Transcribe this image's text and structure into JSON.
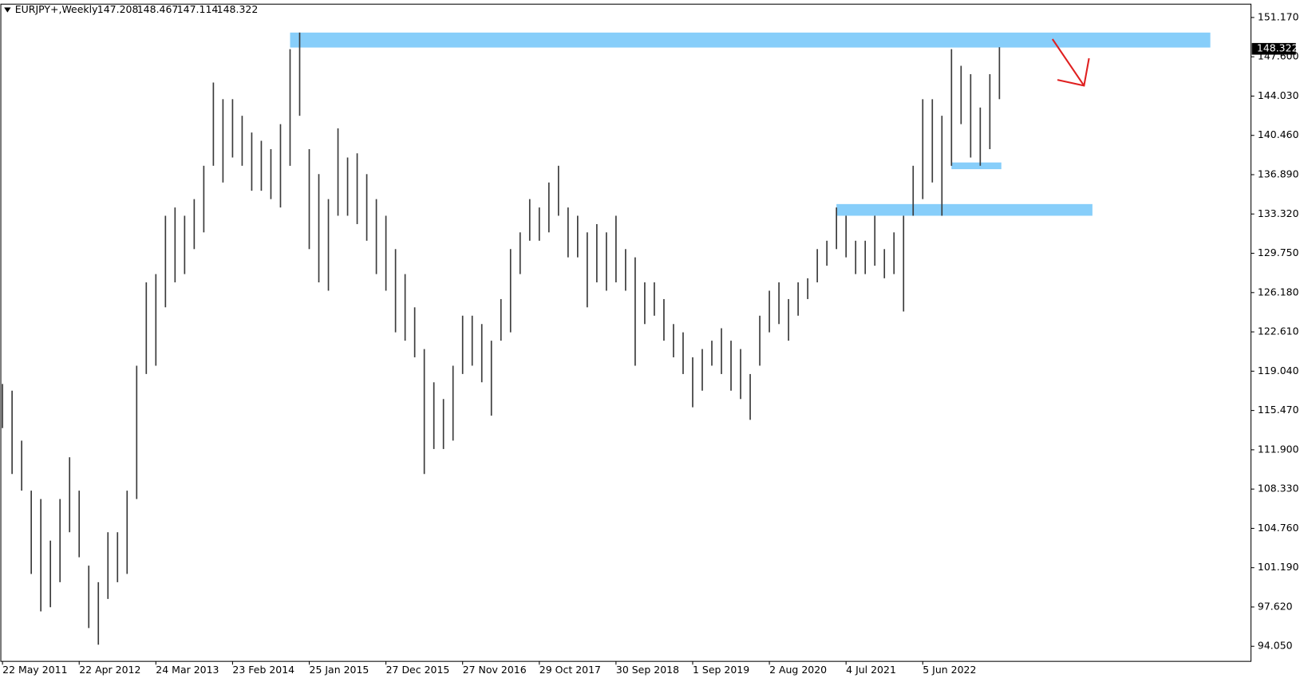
{
  "chart_data": {
    "type": "ohlc",
    "title": "EURJPY+,Weekly",
    "header_values": [
      147.208,
      148.467,
      147.114,
      148.322
    ],
    "last_price": 148.322,
    "color": "#3a3a3a",
    "zone_color": "#87cefa",
    "categories": [
      "22 May 2011",
      null,
      null,
      null,
      null,
      null,
      null,
      null,
      "22 Apr 2012",
      null,
      null,
      null,
      null,
      null,
      null,
      null,
      "24 Mar 2013",
      null,
      null,
      null,
      null,
      null,
      null,
      null,
      "23 Feb 2014",
      null,
      null,
      null,
      null,
      null,
      null,
      null,
      "25 Jan 2015",
      null,
      null,
      null,
      null,
      null,
      null,
      null,
      "27 Dec 2015",
      null,
      null,
      null,
      null,
      null,
      null,
      null,
      "27 Nov 2016",
      null,
      null,
      null,
      null,
      null,
      null,
      null,
      "29 Oct 2017",
      null,
      null,
      null,
      null,
      null,
      null,
      null,
      "30 Sep 2018",
      null,
      null,
      null,
      null,
      null,
      null,
      null,
      "1 Sep 2019",
      null,
      null,
      null,
      null,
      null,
      null,
      null,
      "2 Aug 2020",
      null,
      null,
      null,
      null,
      null,
      null,
      null,
      "4 Jul 2021",
      null,
      null,
      null,
      null,
      null,
      null,
      null,
      "5 Jun 2022",
      null,
      null,
      null,
      null,
      null,
      null,
      null,
      null
    ],
    "high": [
      117.88,
      117.27,
      112.73,
      108.19,
      107.43,
      103.65,
      107.43,
      111.22,
      108.19,
      101.38,
      99.87,
      104.41,
      104.41,
      108.19,
      119.54,
      127.11,
      127.86,
      133.16,
      133.91,
      133.16,
      134.67,
      137.7,
      145.26,
      143.75,
      143.75,
      142.24,
      140.72,
      139.97,
      139.21,
      141.48,
      148.29,
      149.8,
      139.21,
      136.94,
      134.67,
      141.1,
      138.45,
      138.83,
      136.94,
      134.67,
      133.16,
      130.13,
      127.86,
      124.84,
      121.05,
      118.03,
      116.51,
      119.54,
      124.08,
      124.08,
      123.32,
      121.81,
      125.59,
      130.13,
      131.65,
      134.67,
      133.91,
      136.18,
      137.7,
      133.91,
      133.16,
      131.65,
      132.4,
      131.65,
      133.16,
      130.13,
      129.38,
      127.11,
      127.11,
      125.59,
      123.32,
      122.57,
      120.3,
      121.05,
      121.81,
      122.94,
      121.81,
      121.05,
      118.78,
      124.08,
      126.35,
      127.11,
      125.59,
      127.11,
      127.48,
      130.13,
      130.89,
      133.91,
      133.16,
      130.89,
      130.89,
      133.16,
      130.13,
      131.65,
      133.16,
      137.7,
      143.75,
      143.75,
      142.24,
      148.29,
      146.78,
      146.02,
      142.99,
      146.02,
      148.467
    ],
    "low": [
      113.87,
      109.7,
      108.19,
      100.62,
      97.22,
      97.6,
      99.87,
      104.41,
      102.14,
      95.71,
      94.19,
      98.35,
      99.87,
      100.62,
      107.43,
      118.78,
      119.54,
      124.84,
      127.11,
      127.86,
      130.13,
      131.65,
      137.7,
      136.18,
      138.45,
      137.7,
      135.43,
      135.43,
      134.67,
      133.91,
      137.7,
      142.24,
      130.13,
      127.11,
      126.35,
      133.16,
      133.16,
      132.4,
      130.89,
      127.86,
      126.35,
      122.57,
      121.81,
      120.3,
      109.7,
      111.97,
      111.97,
      112.73,
      118.78,
      119.54,
      118.03,
      115.0,
      121.81,
      122.57,
      127.86,
      130.89,
      130.89,
      131.65,
      133.16,
      129.38,
      129.38,
      124.84,
      127.11,
      126.35,
      127.11,
      126.35,
      119.54,
      123.32,
      124.08,
      121.81,
      120.3,
      118.78,
      115.76,
      117.27,
      119.54,
      118.78,
      117.27,
      116.51,
      114.62,
      119.54,
      122.57,
      123.32,
      121.81,
      124.08,
      125.59,
      127.11,
      128.62,
      130.13,
      129.38,
      127.86,
      127.86,
      128.62,
      127.48,
      127.86,
      124.46,
      133.16,
      134.67,
      136.18,
      133.16,
      137.7,
      141.48,
      138.45,
      137.7,
      139.21,
      143.75
    ],
    "zones": [
      {
        "top": 149.8,
        "bottom": 148.44,
        "start": 30,
        "end": 126
      },
      {
        "top": 138.0,
        "bottom": 137.39,
        "start": 99,
        "end": 104.2
      },
      {
        "top": 134.22,
        "bottom": 133.16,
        "start": 87,
        "end": 113.7
      }
    ],
    "ylim": [
      92.68,
      152.38
    ],
    "yticks": [
      {
        "value": 94.05,
        "label": "94.050"
      },
      {
        "value": 97.62,
        "label": "97.620"
      },
      {
        "value": 101.19,
        "label": "101.190"
      },
      {
        "value": 104.76,
        "label": "104.760"
      },
      {
        "value": 108.33,
        "label": "108.330"
      },
      {
        "value": 111.9,
        "label": "111.900"
      },
      {
        "value": 115.47,
        "label": "115.470"
      },
      {
        "value": 119.04,
        "label": "119.040"
      },
      {
        "value": 122.61,
        "label": "122.610"
      },
      {
        "value": 126.18,
        "label": "126.180"
      },
      {
        "value": 129.75,
        "label": "129.750"
      },
      {
        "value": 133.32,
        "label": "133.320"
      },
      {
        "value": 136.89,
        "label": "136.890"
      },
      {
        "value": 140.46,
        "label": "140.460"
      },
      {
        "value": 144.03,
        "label": "144.030"
      },
      {
        "value": 147.6,
        "label": "147.600"
      },
      {
        "value": 151.17,
        "label": "151.170"
      }
    ]
  }
}
